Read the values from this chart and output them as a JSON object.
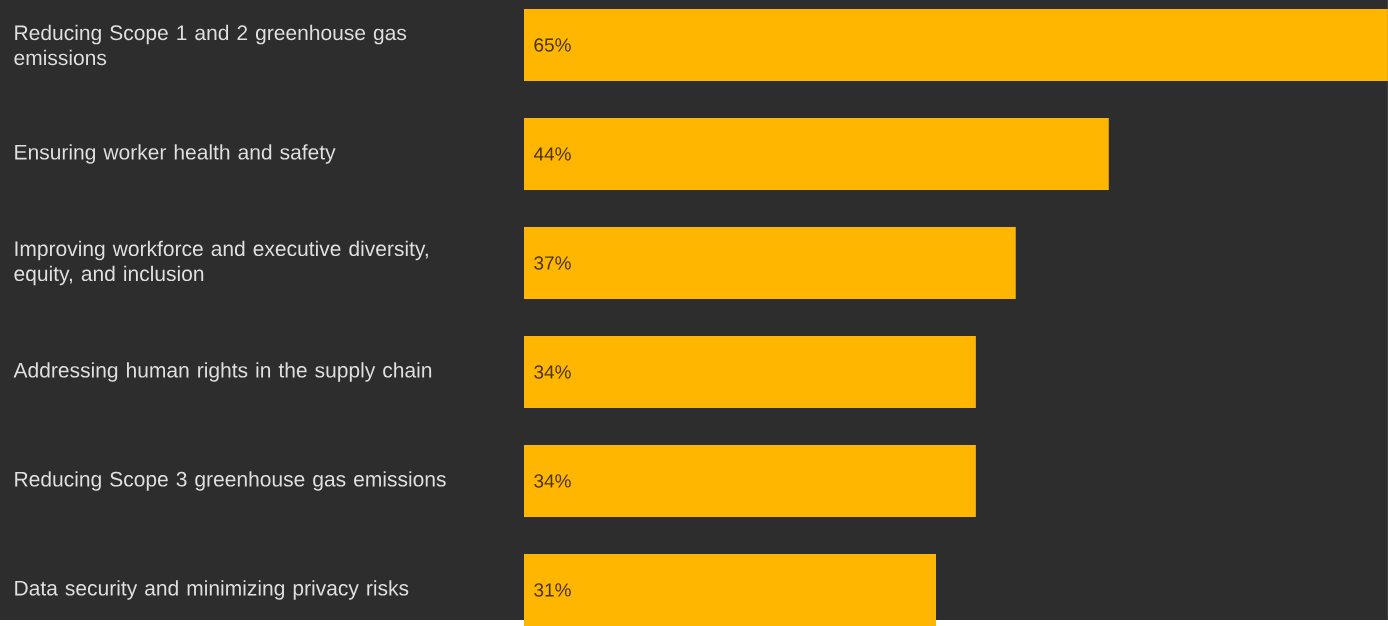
{
  "chart_data": {
    "type": "bar",
    "orientation": "horizontal",
    "categories": [
      "Reducing Scope 1 and 2 greenhouse gas emissions",
      "Ensuring worker health and safety",
      "Improving workforce and executive diversity, equity, and inclusion",
      "Addressing human rights in the supply chain",
      "Reducing Scope 3 greenhouse gas emissions",
      "Data security and minimizing privacy risks"
    ],
    "values": [
      65,
      44,
      37,
      34,
      34,
      31
    ],
    "value_labels": [
      "65%",
      "44%",
      "37%",
      "34%",
      "34%",
      "31%"
    ],
    "color": "#ffb600"
  }
}
